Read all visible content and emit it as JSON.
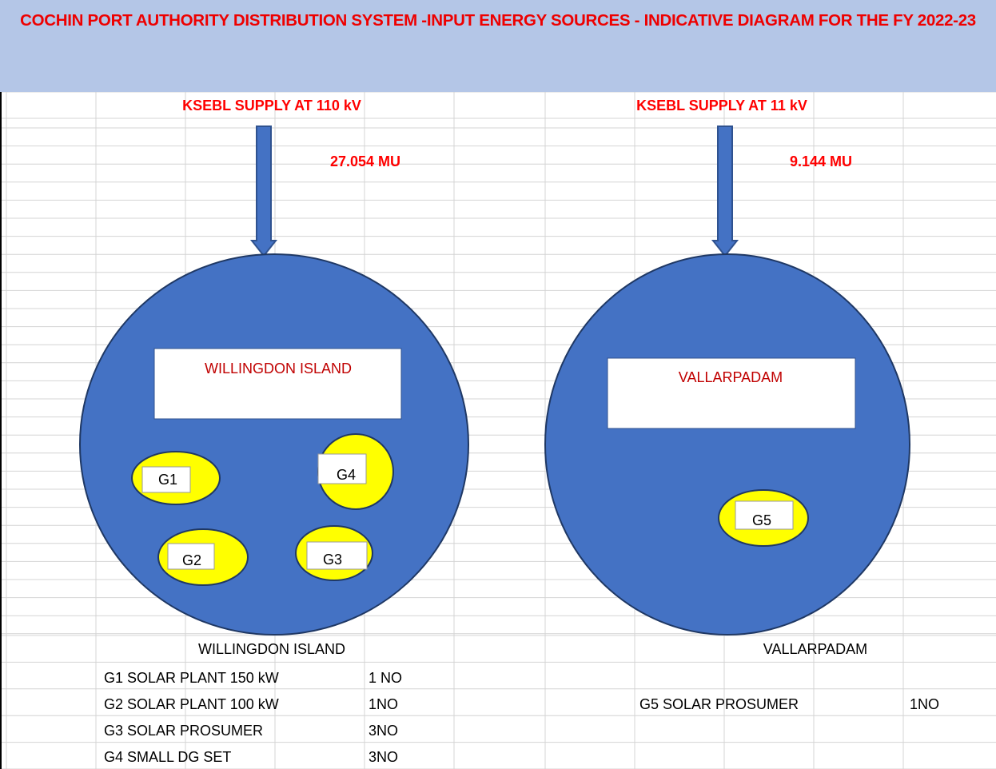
{
  "title": "COCHIN PORT AUTHORITY  DISTRIBUTION SYSTEM -INPUT ENERGY SOURCES - INDICATIVE  DIAGRAM FOR THE FY 2022-23",
  "sections": [
    {
      "supply": "KSEBL  SUPPLY AT 110 kV",
      "energy": "27.054 MU",
      "region": "WILLINGDON ISLAND",
      "generators": [
        "G1",
        "G2",
        "G3",
        "G4"
      ],
      "table_heading": "WILLINGDON ISLAND",
      "table": [
        [
          "G1 SOLAR PLANT 150 kW",
          "1 NO"
        ],
        [
          "G2 SOLAR PLANT 100 kW",
          "1NO"
        ],
        [
          "G3  SOLAR PROSUMER",
          "3NO"
        ],
        [
          "G4  SMALL DG SET",
          "3NO"
        ]
      ]
    },
    {
      "supply": "KSEBL  SUPPLY AT 11 kV",
      "energy": "9.144 MU",
      "region": "VALLARPADAM",
      "generators": [
        "G5"
      ],
      "table_heading": "VALLARPADAM",
      "table": [
        [
          "G5 SOLAR PROSUMER",
          "1NO"
        ]
      ]
    }
  ]
}
